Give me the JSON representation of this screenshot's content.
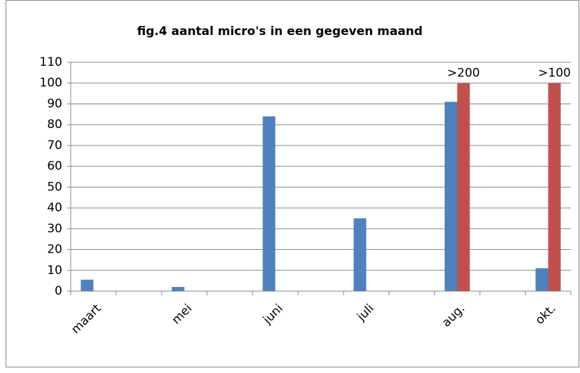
{
  "chart_data": {
    "type": "bar",
    "title": "fig.4  aantal micro's in een gegeven maand",
    "categories": [
      "maart",
      null,
      "mei",
      null,
      "juni",
      null,
      "juli",
      null,
      "aug.",
      null,
      "okt."
    ],
    "series": [
      {
        "color": "#4f81bd",
        "values": [
          5.5,
          null,
          2,
          null,
          84,
          null,
          35,
          null,
          91,
          null,
          11
        ]
      },
      {
        "color": "#c0504d",
        "values": [
          null,
          null,
          null,
          null,
          null,
          null,
          null,
          null,
          100,
          null,
          100
        ]
      }
    ],
    "annotations": [
      {
        "text": ">200",
        "category": "aug."
      },
      {
        "text": ">100",
        "category": "okt."
      }
    ],
    "ylim": [
      0,
      110
    ],
    "yticks": [
      0,
      10,
      20,
      30,
      40,
      50,
      60,
      70,
      80,
      90,
      100,
      110
    ],
    "grid": true
  }
}
